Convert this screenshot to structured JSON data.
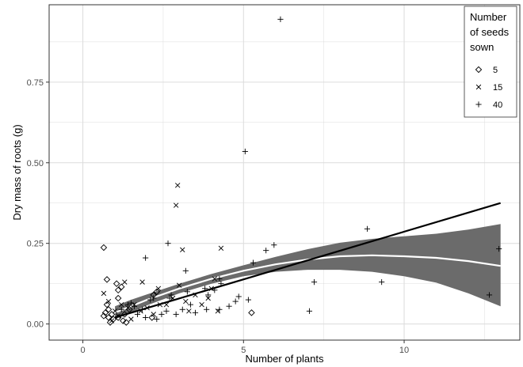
{
  "chart_data": {
    "type": "scatter",
    "xlabel": "Number of plants",
    "ylabel": "Dry mass of roots (g)",
    "xlim": [
      -1.05,
      13.6
    ],
    "ylim": [
      -0.05,
      0.99
    ],
    "x_ticks": [
      0,
      5,
      10
    ],
    "y_ticks": [
      0.0,
      0.25,
      0.5,
      0.75
    ],
    "x_tick_labels": [
      "0",
      "5",
      "10"
    ],
    "y_tick_labels": [
      "0.00",
      "0.25",
      "0.50",
      "0.75"
    ],
    "grid": true,
    "legend": {
      "title_lines": [
        "Number",
        "of seeds",
        "sown"
      ],
      "placement": "top-right",
      "entries": [
        {
          "label": "5",
          "marker": "diamond"
        },
        {
          "label": "15",
          "marker": "x"
        },
        {
          "label": "40",
          "marker": "plus"
        }
      ]
    },
    "series": [
      {
        "name": "5",
        "marker": "diamond",
        "points": [
          [
            0.65,
            0.237
          ],
          [
            0.75,
            0.138
          ],
          [
            1.05,
            0.125
          ],
          [
            1.1,
            0.105
          ],
          [
            1.2,
            0.115
          ],
          [
            1.1,
            0.08
          ],
          [
            0.75,
            0.06
          ],
          [
            0.8,
            0.045
          ],
          [
            0.9,
            0.03
          ],
          [
            0.7,
            0.035
          ],
          [
            0.8,
            0.02
          ],
          [
            0.95,
            0.015
          ],
          [
            1.1,
            0.02
          ],
          [
            1.25,
            0.01
          ],
          [
            1.35,
            0.005
          ],
          [
            1.3,
            0.03
          ],
          [
            1.45,
            0.045
          ],
          [
            2.2,
            0.09
          ],
          [
            2.15,
            0.02
          ],
          [
            2.3,
            0.1
          ],
          [
            5.25,
            0.035
          ],
          [
            0.65,
            0.025
          ],
          [
            0.85,
            0.005
          ]
        ]
      },
      {
        "name": "15",
        "marker": "x",
        "points": [
          [
            2.95,
            0.43
          ],
          [
            2.9,
            0.368
          ],
          [
            3.1,
            0.23
          ],
          [
            4.3,
            0.235
          ],
          [
            0.65,
            0.095
          ],
          [
            0.8,
            0.07
          ],
          [
            1.3,
            0.13
          ],
          [
            1.85,
            0.13
          ],
          [
            2.35,
            0.11
          ],
          [
            1.2,
            0.06
          ],
          [
            1.4,
            0.05
          ],
          [
            1.6,
            0.06
          ],
          [
            1.8,
            0.04
          ],
          [
            2.0,
            0.05
          ],
          [
            2.2,
            0.03
          ],
          [
            2.4,
            0.06
          ],
          [
            2.6,
            0.06
          ],
          [
            2.8,
            0.08
          ],
          [
            3.0,
            0.12
          ],
          [
            3.2,
            0.07
          ],
          [
            3.5,
            0.09
          ],
          [
            3.7,
            0.06
          ],
          [
            3.9,
            0.08
          ],
          [
            4.0,
            0.11
          ],
          [
            4.1,
            0.14
          ],
          [
            4.2,
            0.04
          ],
          [
            3.3,
            0.04
          ],
          [
            1.1,
            0.025
          ],
          [
            1.5,
            0.015
          ],
          [
            0.9,
            0.01
          ],
          [
            1.0,
            0.04
          ]
        ]
      },
      {
        "name": "40",
        "marker": "plus",
        "points": [
          [
            6.15,
            0.945
          ],
          [
            5.05,
            0.535
          ],
          [
            8.85,
            0.295
          ],
          [
            12.65,
            0.09
          ],
          [
            12.95,
            0.233
          ],
          [
            5.95,
            0.245
          ],
          [
            5.7,
            0.228
          ],
          [
            5.3,
            0.19
          ],
          [
            4.25,
            0.14
          ],
          [
            4.3,
            0.125
          ],
          [
            4.1,
            0.105
          ],
          [
            3.8,
            0.11
          ],
          [
            3.9,
            0.09
          ],
          [
            3.2,
            0.165
          ],
          [
            2.65,
            0.25
          ],
          [
            1.95,
            0.205
          ],
          [
            7.2,
            0.13
          ],
          [
            7.05,
            0.04
          ],
          [
            9.3,
            0.13
          ],
          [
            5.15,
            0.075
          ],
          [
            4.85,
            0.085
          ],
          [
            4.75,
            0.07
          ],
          [
            4.55,
            0.055
          ],
          [
            4.25,
            0.045
          ],
          [
            3.85,
            0.045
          ],
          [
            3.5,
            0.035
          ],
          [
            3.35,
            0.06
          ],
          [
            3.1,
            0.045
          ],
          [
            2.9,
            0.03
          ],
          [
            2.6,
            0.04
          ],
          [
            2.45,
            0.03
          ],
          [
            2.3,
            0.015
          ],
          [
            1.5,
            0.065
          ],
          [
            1.6,
            0.055
          ],
          [
            1.4,
            0.06
          ],
          [
            1.2,
            0.045
          ],
          [
            1.7,
            0.03
          ],
          [
            1.85,
            0.045
          ],
          [
            2.1,
            0.075
          ],
          [
            2.2,
            0.08
          ],
          [
            2.7,
            0.08
          ],
          [
            3.25,
            0.1
          ],
          [
            1.95,
            0.02
          ],
          [
            2.75,
            0.09
          ]
        ]
      }
    ],
    "linear_fit": {
      "x": [
        1.0,
        13.0
      ],
      "y": [
        0.02,
        0.375
      ]
    },
    "smooth_fit": {
      "x": [
        1.0,
        1.5,
        2.0,
        3.0,
        4.0,
        5.0,
        6.0,
        7.0,
        8.0,
        9.0,
        10.0,
        11.0,
        12.0,
        13.0
      ],
      "y": [
        0.035,
        0.055,
        0.075,
        0.11,
        0.14,
        0.165,
        0.185,
        0.2,
        0.21,
        0.213,
        0.21,
        0.205,
        0.195,
        0.18
      ],
      "lower": [
        0.015,
        0.035,
        0.058,
        0.095,
        0.125,
        0.148,
        0.162,
        0.168,
        0.168,
        0.162,
        0.148,
        0.128,
        0.095,
        0.055
      ],
      "upper": [
        0.055,
        0.075,
        0.092,
        0.125,
        0.155,
        0.182,
        0.208,
        0.232,
        0.252,
        0.264,
        0.272,
        0.28,
        0.293,
        0.31
      ]
    },
    "colors": {
      "panel_border": "#333333",
      "grid": "#dcdcdc",
      "ribbon": "#6b6b6b",
      "smooth_line": "#ffffff",
      "linear_line": "#000000",
      "marker": "#000000"
    }
  }
}
